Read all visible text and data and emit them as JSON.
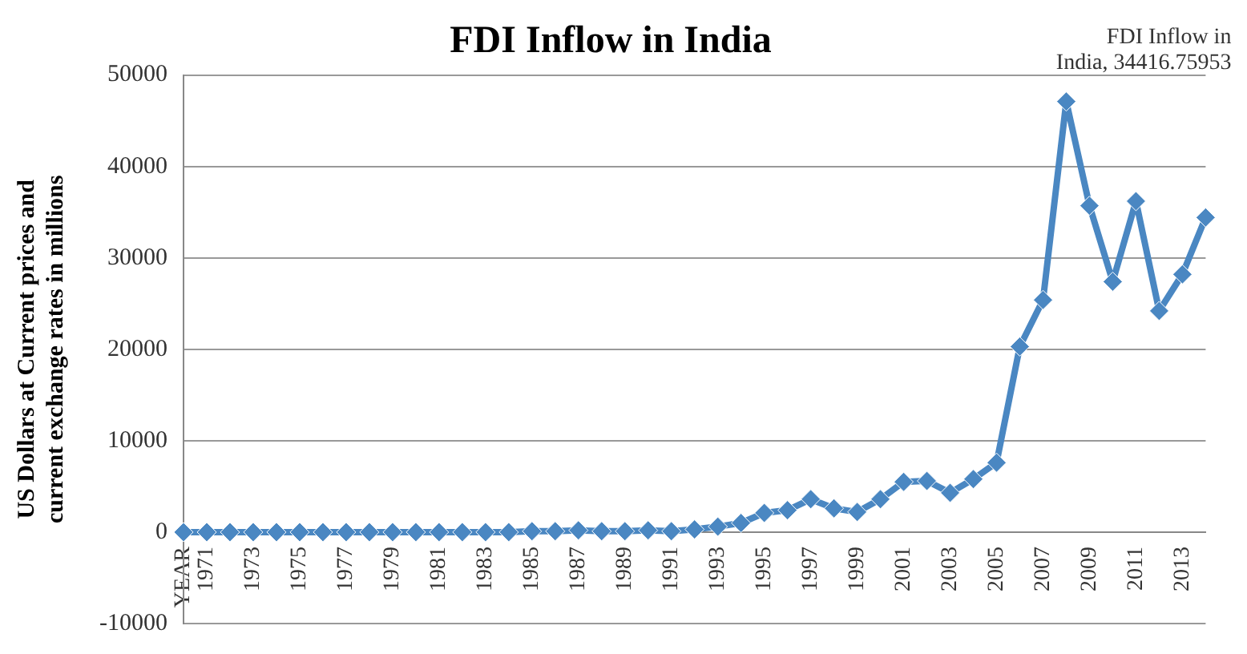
{
  "chart_data": {
    "type": "line",
    "title": "FDI Inflow in India",
    "ylabel": "US Dollars at Current prices and current exchange rates in millions",
    "categories": [
      "YEAR",
      "1971",
      null,
      "1973",
      null,
      "1975",
      null,
      "1977",
      null,
      "1979",
      null,
      "1981",
      null,
      "1983",
      null,
      "1985",
      null,
      "1987",
      null,
      "1989",
      null,
      "1991",
      null,
      "1993",
      null,
      "1995",
      null,
      "1997",
      null,
      "1999",
      null,
      "2001",
      null,
      "2003",
      null,
      "2005",
      null,
      "2007",
      null,
      "2009",
      null,
      "2011",
      null,
      "2013",
      null
    ],
    "series": [
      {
        "color": "#4a87c2",
        "values": [
          0,
          0,
          0,
          0,
          0,
          0,
          0,
          0,
          0,
          0,
          0,
          0,
          0,
          0,
          0,
          100,
          100,
          200,
          100,
          100,
          200,
          100,
          300,
          600,
          1000,
          2100,
          2400,
          3600,
          2600,
          2200,
          3600,
          5500,
          5600,
          4300,
          5800,
          7600,
          20300,
          25400,
          47100,
          35700,
          27400,
          36200,
          24200,
          28200,
          34416.75953
        ]
      }
    ],
    "ylim": [
      -10000,
      50000
    ],
    "yticks": [
      -10000,
      0,
      10000,
      20000,
      30000,
      40000,
      50000
    ],
    "grid": "y",
    "legend": false,
    "marker": "diamond",
    "line_style": "solid",
    "annotations": [
      "FDI Inflow in India, 34416.75953"
    ]
  }
}
